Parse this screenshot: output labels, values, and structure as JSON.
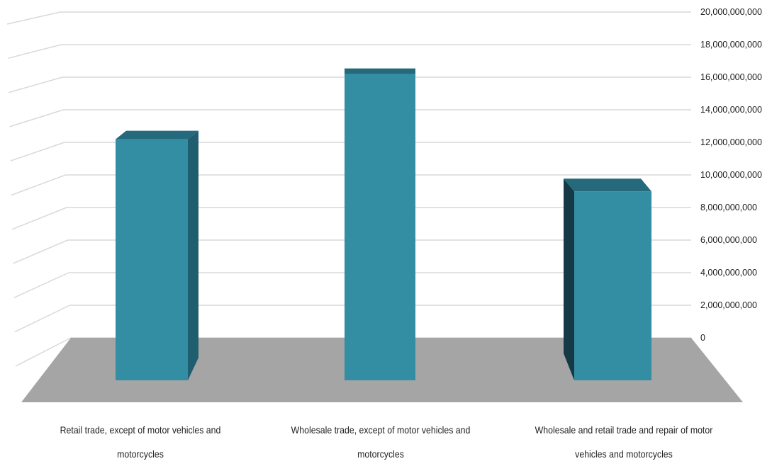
{
  "chart_data": {
    "type": "bar",
    "style": "3d-column",
    "categories": [
      "Retail trade, except of motor vehicles and motorcycles",
      "Wholesale trade, except of motor vehicles and motorcycles",
      "Wholesale and retail trade and repair of motor vehicles and motorcycles"
    ],
    "values": [
      14800000000,
      18800000000,
      11600000000
    ],
    "y_ticks": [
      "0",
      "2,000,000,000",
      "4,000,000,000",
      "6,000,000,000",
      "8,000,000,000",
      "10,000,000,000",
      "12,000,000,000",
      "14,000,000,000",
      "16,000,000,000",
      "18,000,000,000",
      "20,000,000,000"
    ],
    "ylim": [
      0,
      20000000000
    ],
    "y_axis_side": "right",
    "grid": true,
    "title": "",
    "xlabel": "",
    "ylabel": "",
    "colors": {
      "bar_front": "#348ea3",
      "bar_side": "#1f5e6e",
      "bar_top": "#256a7c",
      "floor": "#a5a5a5",
      "grid": "#d9d9d9"
    }
  }
}
